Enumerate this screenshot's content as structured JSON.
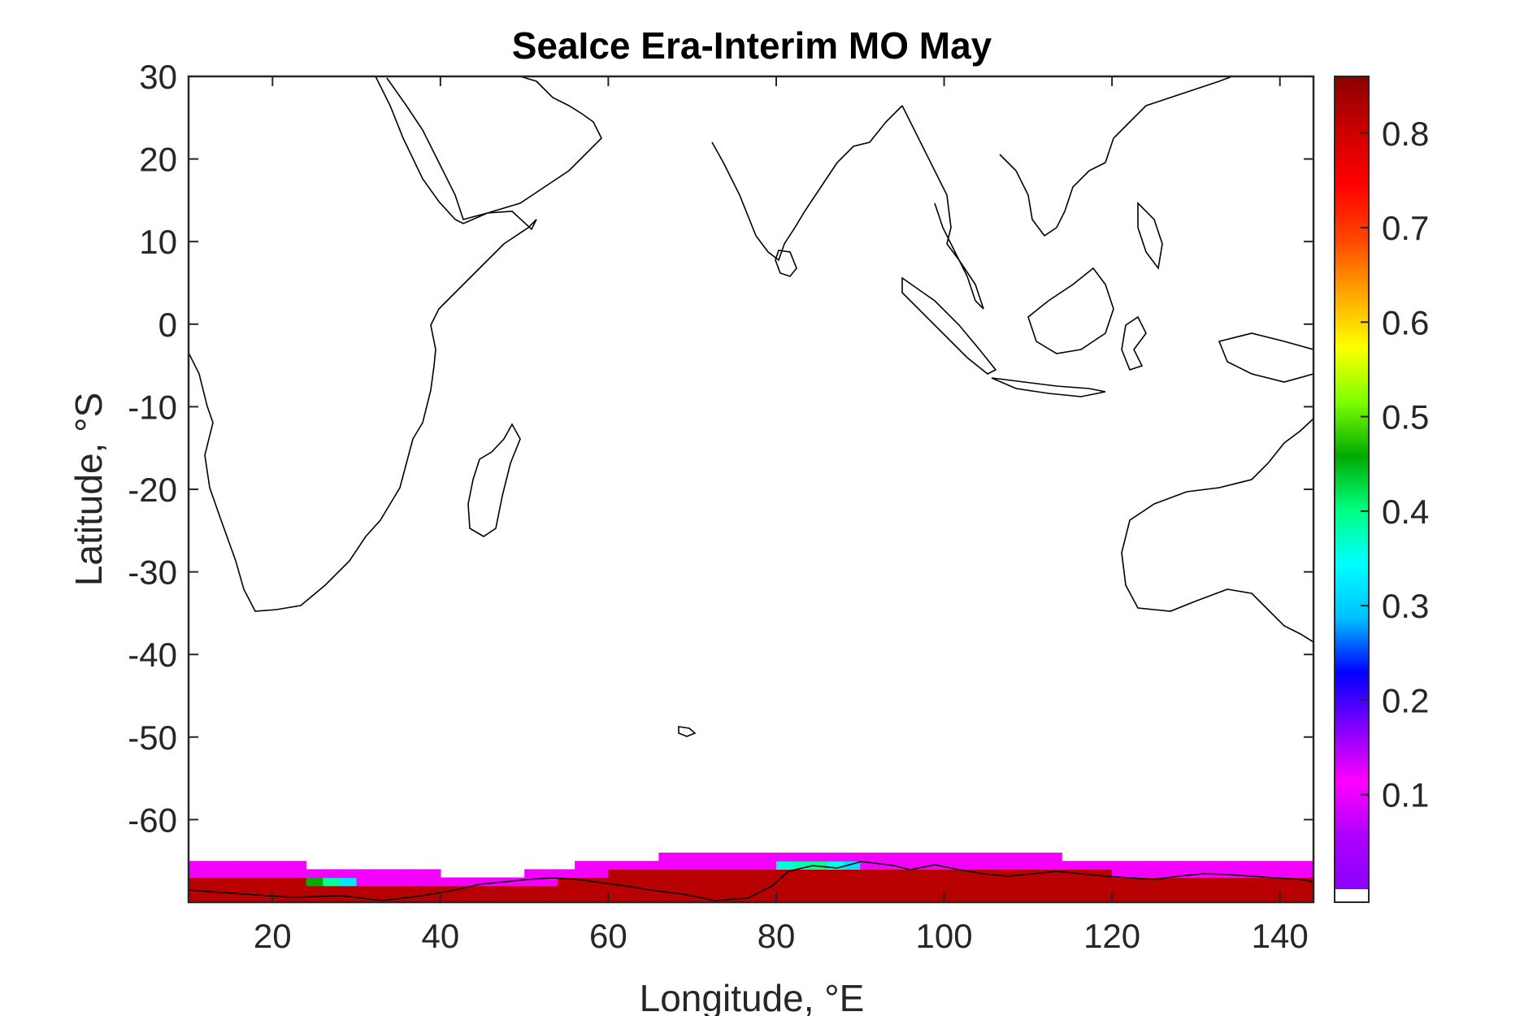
{
  "chart_data": {
    "type": "heatmap",
    "title": "SeaIce Era-Interim MO May",
    "xlabel": "Longitude, °E",
    "ylabel": "Latitude, °S",
    "xlim": [
      10,
      144
    ],
    "ylim": [
      -70,
      30
    ],
    "xticks": [
      "20",
      "40",
      "60",
      "80",
      "100",
      "120",
      "140"
    ],
    "yticks": [
      "30",
      "20",
      "10",
      "0",
      "-10",
      "-20",
      "-30",
      "-40",
      "-50",
      "-60"
    ],
    "colorbar": {
      "range": [
        0,
        0.86
      ],
      "ticks": [
        "0.8",
        "0.7",
        "0.6",
        "0.5",
        "0.4",
        "0.3",
        "0.2",
        "0.1"
      ],
      "colormap": [
        "#8b00ff",
        "#b000ff",
        "#ff00ff",
        "#7f00ff",
        "#0000ff",
        "#00bfff",
        "#00ffff",
        "#00ff7f",
        "#00aa00",
        "#7fff00",
        "#ffff00",
        "#ffa500",
        "#ff4500",
        "#ff0000",
        "#cc0000",
        "#8b0000"
      ]
    },
    "grid": false,
    "ice_edge": {
      "description_units": "latitude of outer (0.1) and 0.8 concentration contours per longitude",
      "lon": [
        10,
        20,
        30,
        40,
        50,
        56,
        60,
        70,
        75,
        80,
        85,
        90,
        100,
        110,
        120,
        130,
        140,
        144
      ],
      "outer_lat": [
        -65.5,
        -65.5,
        -66.5,
        -67.0,
        -67.0,
        -66.0,
        -65.5,
        -64.5,
        -64.5,
        -64.5,
        -64.0,
        -64.5,
        -64.5,
        -64.5,
        -65.5,
        -65.5,
        -65.5,
        -65.5
      ],
      "inner_lat": [
        -67.5,
        -67.5,
        -68.5,
        -68.5,
        -68.0,
        -67.5,
        -66.5,
        -66.0,
        -66.0,
        -66.0,
        -66.5,
        -66.5,
        -66.5,
        -66.5,
        -67.0,
        -67.0,
        -67.0,
        -67.0
      ]
    }
  }
}
